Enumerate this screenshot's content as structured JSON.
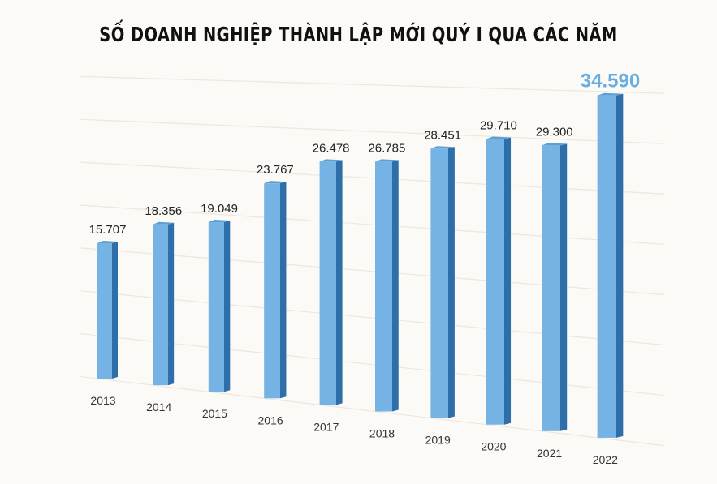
{
  "chart_data": {
    "type": "bar",
    "title": "SỐ DOANH NGHIỆP THÀNH LẬP MỚI QUÝ I QUA CÁC NĂM",
    "categories": [
      "2013",
      "2014",
      "2015",
      "2016",
      "2017",
      "2018",
      "2019",
      "2020",
      "2021",
      "2022"
    ],
    "values": [
      15707,
      18356,
      19049,
      23767,
      26478,
      26785,
      28451,
      29710,
      29300,
      34590
    ],
    "value_labels": [
      "15.707",
      "18.356",
      "19.049",
      "23.767",
      "26.478",
      "26.785",
      "28.451",
      "29.710",
      "29.300",
      "34.590"
    ],
    "highlight_index": 9,
    "xlabel": "",
    "ylabel": "",
    "ylim": [
      0,
      35000
    ],
    "grid": true,
    "colors": {
      "front": "#74b3e3",
      "side": "#2f6fa9",
      "top": "#5c9fd4",
      "highlight_label": "#6aaee0",
      "grid": "#ece7df"
    }
  }
}
